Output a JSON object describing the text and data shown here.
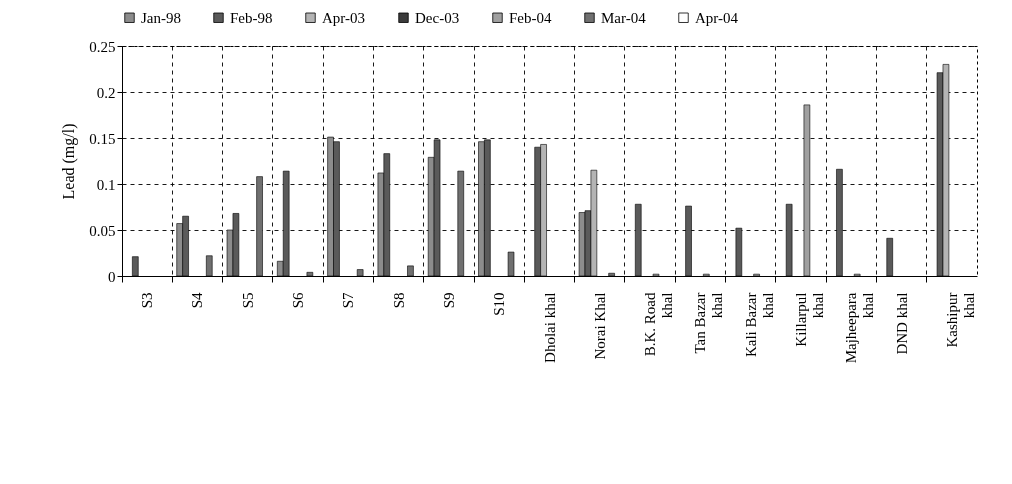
{
  "chart_data": {
    "type": "bar",
    "ylabel": "Lead (mg/l)",
    "categories": [
      "S3",
      "S4",
      "S5",
      "S6",
      "S7",
      "S8",
      "S9",
      "S10",
      "Dholai khal",
      "Norai Khal",
      "B.K. Road khal",
      "Tan Bazar khal",
      "Kali Bazar khal",
      "Killarpul khal",
      "Majheepara khal",
      "DND khal",
      "Kashipur khal"
    ],
    "series": [
      {
        "name": "Jan-98",
        "color": "#8c8c8c",
        "values": [
          null,
          0.057,
          0.05,
          0.016,
          0.151,
          0.112,
          0.129,
          0.146,
          null,
          0.069,
          null,
          null,
          null,
          null,
          null,
          null,
          null
        ]
      },
      {
        "name": "Feb-98",
        "color": "#5a5a5a",
        "values": [
          0.021,
          0.065,
          0.068,
          0.114,
          0.146,
          0.133,
          0.148,
          0.148,
          0.14,
          0.071,
          0.078,
          0.076,
          0.052,
          0.078,
          0.116,
          0.041,
          0.221
        ]
      },
      {
        "name": "Apr-03",
        "color": "#b4b4b4",
        "values": [
          null,
          null,
          null,
          null,
          null,
          null,
          null,
          null,
          0.143,
          0.115,
          null,
          null,
          null,
          null,
          null,
          null,
          0.23
        ]
      },
      {
        "name": "Dec-03",
        "color": "#3c3c3c",
        "values": [
          null,
          null,
          null,
          null,
          null,
          null,
          null,
          null,
          null,
          null,
          null,
          null,
          null,
          null,
          null,
          null,
          null
        ]
      },
      {
        "name": "Feb-04",
        "color": "#a0a0a0",
        "values": [
          null,
          null,
          null,
          null,
          null,
          null,
          null,
          null,
          null,
          null,
          0.002,
          0.002,
          0.002,
          0.186,
          0.002,
          null,
          null
        ]
      },
      {
        "name": "Mar-04",
        "color": "#707070",
        "values": [
          null,
          0.022,
          0.108,
          0.004,
          0.007,
          0.011,
          0.114,
          0.026,
          null,
          0.003,
          null,
          null,
          null,
          null,
          null,
          null,
          null
        ]
      },
      {
        "name": "Apr-04",
        "color": "#ffffff",
        "values": [
          null,
          null,
          null,
          null,
          null,
          null,
          null,
          null,
          null,
          null,
          null,
          null,
          null,
          null,
          null,
          null,
          null
        ]
      }
    ],
    "ylim": [
      0,
      0.25
    ],
    "yticks": [
      0,
      0.05,
      0.1,
      0.15,
      0.2,
      0.25
    ],
    "grid": true,
    "legend": "top"
  }
}
